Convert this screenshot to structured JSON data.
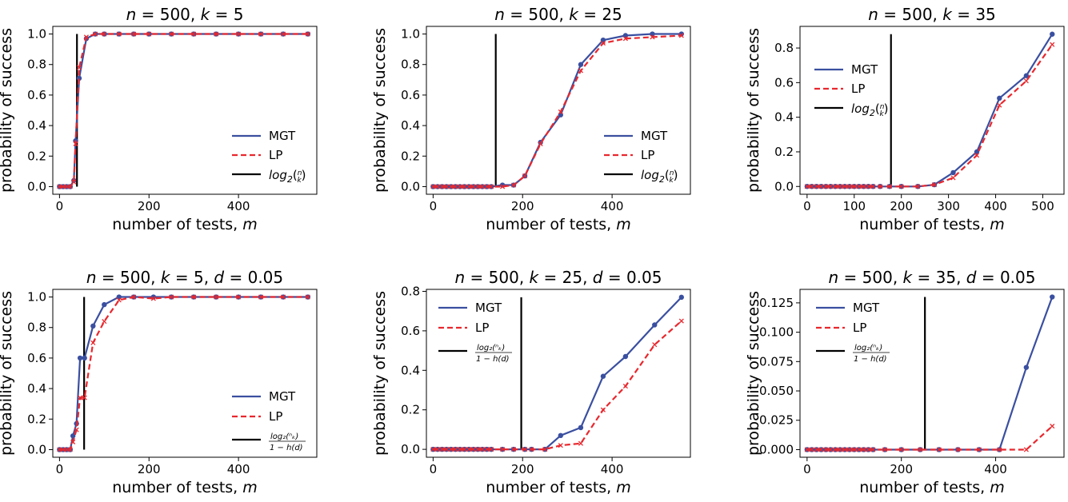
{
  "chart_data": [
    {
      "type": "line",
      "title": "n = 500, k = 5",
      "xlabel": "number of tests, m",
      "ylabel": "probability of success",
      "xlim": [
        -15,
        575
      ],
      "ylim": [
        -0.05,
        1.05
      ],
      "xticks": [
        0,
        200,
        400
      ],
      "yticks": [
        0.0,
        0.2,
        0.4,
        0.6,
        0.8,
        1.0
      ],
      "ytick_labels": [
        "0.0",
        "0.2",
        "0.4",
        "0.6",
        "0.8",
        "1.0"
      ],
      "legend_position": "lower-right",
      "threshold": 39,
      "threshold_top": 1.0,
      "series": [
        {
          "name": "MGT",
          "color": "#3a4fa0",
          "style": "solid",
          "marker": "dot",
          "x": [
            0,
            8,
            16,
            24,
            32,
            36,
            44,
            60,
            80,
            100,
            133,
            166,
            200,
            250,
            300,
            350,
            400,
            450,
            500,
            555
          ],
          "y": [
            0.0,
            0.0,
            0.0,
            0.0,
            0.04,
            0.3,
            0.71,
            0.97,
            1.0,
            1.0,
            1.0,
            1.0,
            1.0,
            1.0,
            1.0,
            1.0,
            1.0,
            1.0,
            1.0,
            1.0
          ]
        },
        {
          "name": "LP",
          "color": "#e8282e",
          "style": "dashed",
          "marker": "x",
          "x": [
            0,
            8,
            16,
            24,
            32,
            36,
            44,
            60,
            80,
            100,
            133,
            166,
            200,
            250,
            300,
            350,
            400,
            450,
            500,
            555
          ],
          "y": [
            0.0,
            0.0,
            0.0,
            0.0,
            0.03,
            0.28,
            0.78,
            0.98,
            1.0,
            1.0,
            1.0,
            1.0,
            1.0,
            1.0,
            1.0,
            1.0,
            1.0,
            1.0,
            1.0,
            1.0
          ]
        }
      ],
      "legend": [
        "MGT",
        "LP",
        "log2(n k)"
      ]
    },
    {
      "type": "line",
      "title": "n = 500, k = 25",
      "xlabel": "number of tests, m",
      "ylabel": "probability of success",
      "xlim": [
        -15,
        575
      ],
      "ylim": [
        -0.05,
        1.05
      ],
      "xticks": [
        0,
        200,
        400
      ],
      "yticks": [
        0.0,
        0.2,
        0.4,
        0.6,
        0.8,
        1.0
      ],
      "ytick_labels": [
        "0.0",
        "0.2",
        "0.4",
        "0.6",
        "0.8",
        "1.0"
      ],
      "legend_position": "lower-right",
      "threshold": 140,
      "threshold_top": 1.0,
      "series": [
        {
          "name": "MGT",
          "color": "#3a4fa0",
          "style": "solid",
          "marker": "dot",
          "x": [
            0,
            10,
            20,
            30,
            40,
            50,
            60,
            70,
            80,
            90,
            100,
            110,
            120,
            130,
            155,
            180,
            205,
            240,
            285,
            330,
            380,
            430,
            490,
            555
          ],
          "y": [
            0,
            0,
            0,
            0,
            0,
            0,
            0,
            0,
            0,
            0,
            0,
            0,
            0,
            0,
            0.01,
            0.01,
            0.07,
            0.29,
            0.47,
            0.8,
            0.96,
            0.99,
            1.0,
            1.0
          ]
        },
        {
          "name": "LP",
          "color": "#e8282e",
          "style": "dashed",
          "marker": "x",
          "x": [
            0,
            10,
            20,
            30,
            40,
            50,
            60,
            70,
            80,
            90,
            100,
            110,
            120,
            130,
            155,
            180,
            205,
            240,
            285,
            330,
            380,
            430,
            490,
            555
          ],
          "y": [
            0,
            0,
            0,
            0,
            0,
            0,
            0,
            0,
            0,
            0,
            0,
            0,
            0,
            0,
            0.0,
            0.01,
            0.07,
            0.28,
            0.49,
            0.76,
            0.94,
            0.97,
            0.98,
            0.99
          ]
        }
      ],
      "legend": [
        "MGT",
        "LP",
        "log2(n k)"
      ]
    },
    {
      "type": "line",
      "title": "n = 500, k = 35",
      "xlabel": "number of tests, m",
      "ylabel": "probability of success",
      "xlim": [
        -15,
        545
      ],
      "ylim": [
        -0.045,
        0.925
      ],
      "xticks": [
        0,
        100,
        200,
        300,
        400,
        500
      ],
      "yticks": [
        0.0,
        0.2,
        0.4,
        0.6,
        0.8
      ],
      "ytick_labels": [
        "0.0",
        "0.2",
        "0.4",
        "0.6",
        "0.8"
      ],
      "legend_position": "center-left",
      "threshold": 178,
      "threshold_top": 0.88,
      "series": [
        {
          "name": "MGT",
          "color": "#3a4fa0",
          "style": "solid",
          "marker": "dot",
          "x": [
            0,
            10,
            20,
            30,
            40,
            50,
            60,
            70,
            80,
            90,
            100,
            110,
            120,
            130,
            140,
            155,
            175,
            200,
            235,
            270,
            310,
            360,
            408,
            465,
            520
          ],
          "y": [
            0,
            0,
            0,
            0,
            0,
            0,
            0,
            0,
            0,
            0,
            0,
            0,
            0,
            0,
            0,
            0,
            0,
            0,
            0,
            0.01,
            0.08,
            0.2,
            0.51,
            0.64,
            0.88
          ]
        },
        {
          "name": "LP",
          "color": "#e8282e",
          "style": "dashed",
          "marker": "x",
          "x": [
            0,
            10,
            20,
            30,
            40,
            50,
            60,
            70,
            80,
            90,
            100,
            110,
            120,
            130,
            140,
            155,
            175,
            200,
            235,
            270,
            310,
            360,
            408,
            465,
            520
          ],
          "y": [
            0,
            0,
            0,
            0,
            0,
            0,
            0,
            0,
            0,
            0,
            0,
            0,
            0,
            0,
            0,
            0,
            0,
            0,
            0,
            0.01,
            0.05,
            0.18,
            0.47,
            0.61,
            0.82
          ]
        }
      ],
      "legend": [
        "MGT",
        "LP",
        "log2(n k)"
      ]
    },
    {
      "type": "line",
      "title": "n = 500, k = 5, d = 0.05",
      "xlabel": "number of tests, m",
      "ylabel": "probability of success",
      "xlim": [
        -15,
        575
      ],
      "ylim": [
        -0.05,
        1.05
      ],
      "xticks": [
        0,
        200,
        400
      ],
      "yticks": [
        0.0,
        0.2,
        0.4,
        0.6,
        0.8,
        1.0
      ],
      "ytick_labels": [
        "0.0",
        "0.2",
        "0.4",
        "0.6",
        "0.8",
        "1.0"
      ],
      "legend_position": "lower-right",
      "threshold": 55,
      "threshold_top": 1.0,
      "series": [
        {
          "name": "MGT",
          "color": "#3a4fa0",
          "style": "solid",
          "marker": "dot",
          "x": [
            0,
            8,
            16,
            24,
            30,
            38,
            46,
            56,
            75,
            100,
            133,
            166,
            210,
            250,
            300,
            350,
            400,
            450,
            500,
            555
          ],
          "y": [
            0.0,
            0.0,
            0.0,
            0.0,
            0.09,
            0.17,
            0.6,
            0.6,
            0.81,
            0.95,
            1.0,
            1.0,
            1.0,
            1.0,
            1.0,
            1.0,
            1.0,
            1.0,
            1.0,
            1.0
          ]
        },
        {
          "name": "LP",
          "color": "#e8282e",
          "style": "dashed",
          "marker": "x",
          "x": [
            0,
            8,
            16,
            24,
            30,
            38,
            46,
            56,
            75,
            100,
            133,
            166,
            210,
            250,
            300,
            350,
            400,
            450,
            500,
            555
          ],
          "y": [
            0.0,
            0.0,
            0.0,
            0.0,
            0.05,
            0.13,
            0.34,
            0.34,
            0.7,
            0.84,
            0.98,
            1.0,
            0.99,
            1.0,
            1.0,
            1.0,
            1.0,
            1.0,
            1.0,
            1.0
          ]
        }
      ],
      "legend": [
        "MGT",
        "LP",
        "log2(n k) / 1-h(d)"
      ]
    },
    {
      "type": "line",
      "title": "n = 500, k = 25, d = 0.05",
      "xlabel": "number of tests, m",
      "ylabel": "probability of success",
      "xlim": [
        -15,
        575
      ],
      "ylim": [
        -0.04,
        0.81
      ],
      "xticks": [
        0,
        200,
        400
      ],
      "yticks": [
        0.0,
        0.2,
        0.4,
        0.6,
        0.8
      ],
      "ytick_labels": [
        "0.0",
        "0.2",
        "0.4",
        "0.6",
        "0.8"
      ],
      "legend_position": "upper-left",
      "threshold": 197,
      "threshold_top": 0.77,
      "series": [
        {
          "name": "MGT",
          "color": "#3a4fa0",
          "style": "solid",
          "marker": "dot",
          "x": [
            0,
            10,
            20,
            30,
            40,
            50,
            60,
            70,
            80,
            90,
            100,
            110,
            120,
            130,
            155,
            180,
            205,
            220,
            250,
            285,
            330,
            380,
            430,
            495,
            555
          ],
          "y": [
            0,
            0,
            0,
            0,
            0,
            0,
            0,
            0,
            0,
            0,
            0,
            0,
            0,
            0,
            0,
            0,
            0,
            0,
            0,
            0.07,
            0.11,
            0.37,
            0.47,
            0.63,
            0.77
          ]
        },
        {
          "name": "LP",
          "color": "#e8282e",
          "style": "dashed",
          "marker": "x",
          "x": [
            0,
            10,
            20,
            30,
            40,
            50,
            60,
            70,
            80,
            90,
            100,
            110,
            120,
            130,
            155,
            180,
            205,
            220,
            250,
            285,
            330,
            380,
            430,
            495,
            555
          ],
          "y": [
            0,
            0,
            0,
            0,
            0,
            0,
            0,
            0,
            0,
            0,
            0,
            0,
            0,
            0,
            0,
            0,
            0,
            0,
            0,
            0.02,
            0.03,
            0.2,
            0.32,
            0.53,
            0.65
          ]
        }
      ],
      "legend": [
        "MGT",
        "LP",
        "log2(n k) / 1-h(d)"
      ]
    },
    {
      "type": "line",
      "title": "n = 500, k = 35, d = 0.05",
      "xlabel": "number of tests, m",
      "ylabel": "probability of success",
      "xlim": [
        -15,
        545
      ],
      "ylim": [
        -0.0065,
        0.1365
      ],
      "xticks": [
        0,
        200,
        400
      ],
      "yticks": [
        0.0,
        0.025,
        0.05,
        0.075,
        0.1,
        0.125
      ],
      "ytick_labels": [
        "0.000",
        "0.025",
        "0.050",
        "0.075",
        "0.100",
        "0.125"
      ],
      "legend_position": "upper-left",
      "threshold": 250,
      "threshold_top": 0.13,
      "series": [
        {
          "name": "MGT",
          "color": "#3a4fa0",
          "style": "solid",
          "marker": "dot",
          "x": [
            0,
            10,
            20,
            30,
            40,
            50,
            60,
            70,
            80,
            90,
            100,
            110,
            120,
            130,
            140,
            165,
            200,
            240,
            280,
            320,
            365,
            408,
            465,
            520
          ],
          "y": [
            0,
            0,
            0,
            0,
            0,
            0,
            0,
            0,
            0,
            0,
            0,
            0,
            0,
            0,
            0,
            0,
            0,
            0,
            0,
            0,
            0,
            0,
            0.07,
            0.13
          ]
        },
        {
          "name": "LP",
          "color": "#e8282e",
          "style": "dashed",
          "marker": "x",
          "x": [
            0,
            10,
            20,
            30,
            40,
            50,
            60,
            70,
            80,
            90,
            100,
            110,
            120,
            130,
            140,
            165,
            200,
            240,
            280,
            320,
            365,
            408,
            465,
            520
          ],
          "y": [
            0,
            0,
            0,
            0,
            0,
            0,
            0,
            0,
            0,
            0,
            0,
            0,
            0,
            0,
            0,
            0,
            0,
            0,
            0,
            0,
            0,
            0,
            0.0,
            0.02
          ]
        }
      ],
      "legend": [
        "MGT",
        "LP",
        "log2(n k) / 1-h(d)"
      ]
    }
  ]
}
